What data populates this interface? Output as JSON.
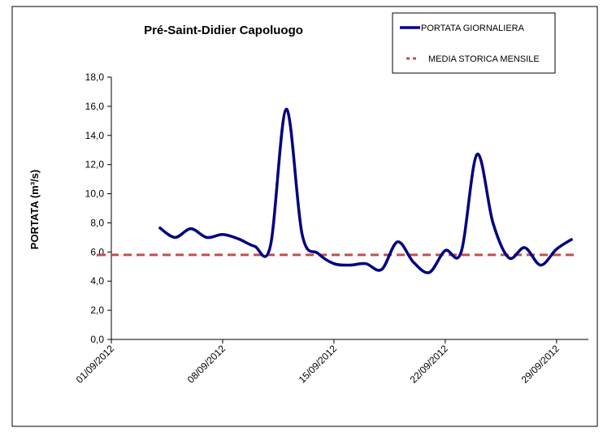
{
  "chart_data": {
    "type": "line",
    "title": "Pré-Saint-Didier Capoluogo",
    "y_label": "PORTATA (m³/s)",
    "x": [
      "2012-09-04",
      "2012-09-05",
      "2012-09-06",
      "2012-09-07",
      "2012-09-08",
      "2012-09-09",
      "2012-09-10",
      "2012-09-11",
      "2012-09-12",
      "2012-09-13",
      "2012-09-14",
      "2012-09-15",
      "2012-09-16",
      "2012-09-17",
      "2012-09-18",
      "2012-09-19",
      "2012-09-20",
      "2012-09-21",
      "2012-09-22",
      "2012-09-23",
      "2012-09-24",
      "2012-09-25",
      "2012-09-26",
      "2012-09-27",
      "2012-09-28",
      "2012-09-29",
      "2012-09-30"
    ],
    "series": [
      {
        "name": "PORTATA GIORNALIERA",
        "color": "#000080",
        "values": [
          7.7,
          7.0,
          7.6,
          7.0,
          7.2,
          6.9,
          6.4,
          6.4,
          15.8,
          7.2,
          5.9,
          5.2,
          5.1,
          5.2,
          4.8,
          6.7,
          5.3,
          4.6,
          6.1,
          6.0,
          12.7,
          8.0,
          5.6,
          6.3,
          5.1,
          6.2,
          6.9
        ]
      }
    ],
    "mean": {
      "name": "MEDIA STORICA MENSILE",
      "color": "#c0504d",
      "value": 5.8
    },
    "xlim": [
      "2012-08-31",
      "2012-10-01"
    ],
    "xticks": [
      {
        "value": "2012-09-01",
        "label": "01/09/2012"
      },
      {
        "value": "2012-09-08",
        "label": "08/09/2012"
      },
      {
        "value": "2012-09-15",
        "label": "15/09/2012"
      },
      {
        "value": "2012-09-22",
        "label": "22/09/2012"
      },
      {
        "value": "2012-09-29",
        "label": "29/09/2012"
      }
    ],
    "ylim": [
      0,
      18
    ],
    "yticks": [
      {
        "value": 0,
        "label": "0,0"
      },
      {
        "value": 2,
        "label": "2,0"
      },
      {
        "value": 4,
        "label": "4,0"
      },
      {
        "value": 6,
        "label": "6,0"
      },
      {
        "value": 8,
        "label": "8,0"
      },
      {
        "value": 10,
        "label": "10,0"
      },
      {
        "value": 12,
        "label": "12,0"
      },
      {
        "value": 14,
        "label": "14,0"
      },
      {
        "value": 16,
        "label": "16,0"
      },
      {
        "value": 18,
        "label": "18,0"
      }
    ],
    "legend": "top-right"
  }
}
